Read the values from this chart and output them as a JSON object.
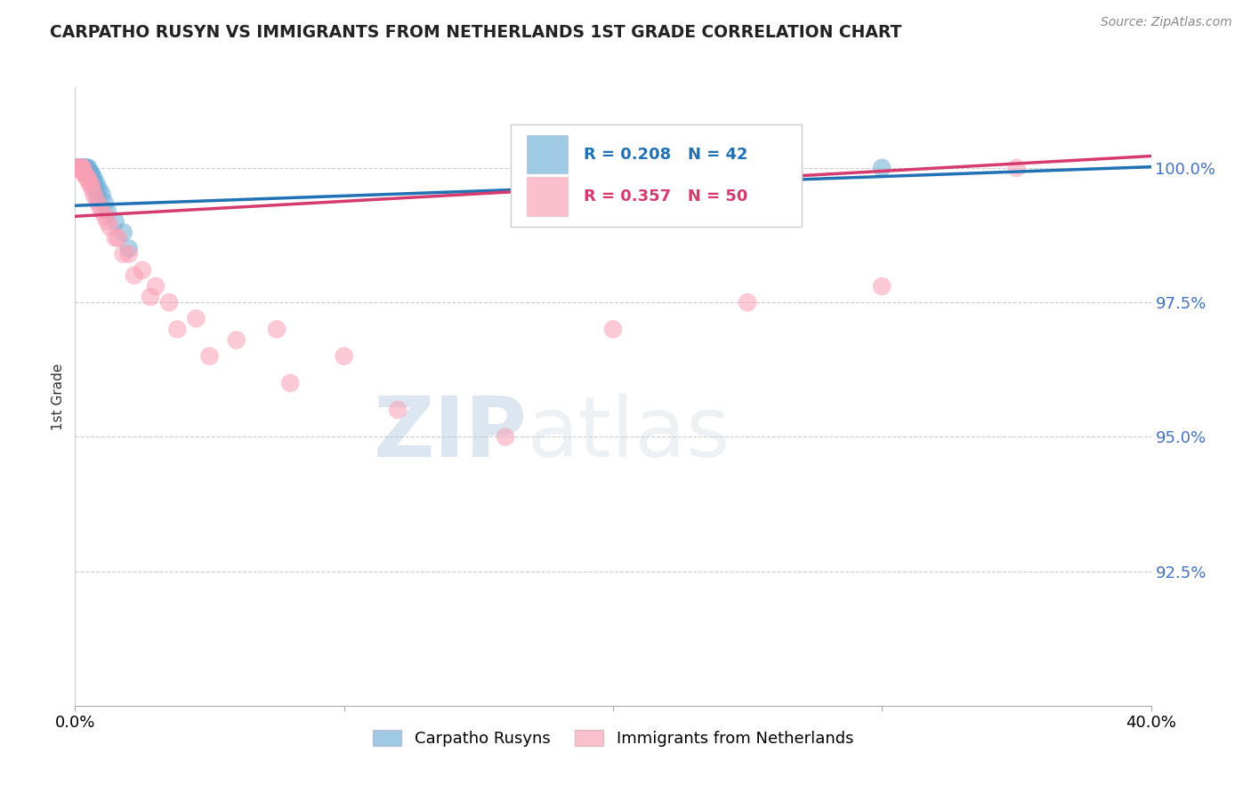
{
  "title": "CARPATHO RUSYN VS IMMIGRANTS FROM NETHERLANDS 1ST GRADE CORRELATION CHART",
  "source": "Source: ZipAtlas.com",
  "ylabel": "1st Grade",
  "y_ticks": [
    92.5,
    95.0,
    97.5,
    100.0
  ],
  "y_tick_labels": [
    "92.5%",
    "95.0%",
    "97.5%",
    "100.0%"
  ],
  "x_min": 0.0,
  "x_max": 40.0,
  "y_min": 90.0,
  "y_max": 101.5,
  "blue_color": "#6baed6",
  "pink_color": "#fa9fb5",
  "blue_line_color": "#2171b5",
  "pink_line_color": "#d63b6e",
  "blue_R": 0.208,
  "blue_N": 42,
  "pink_R": 0.357,
  "pink_N": 50,
  "legend_label_blue": "Carpatho Rusyns",
  "legend_label_pink": "Immigrants from Netherlands",
  "watermark_zip": "ZIP",
  "watermark_atlas": "atlas",
  "blue_scatter_x": [
    0.05,
    0.1,
    0.12,
    0.15,
    0.18,
    0.2,
    0.22,
    0.25,
    0.28,
    0.3,
    0.35,
    0.4,
    0.45,
    0.5,
    0.55,
    0.6,
    0.65,
    0.7,
    0.8,
    0.9,
    1.0,
    1.1,
    1.2,
    1.5,
    1.8,
    2.0,
    0.08,
    0.13,
    0.17,
    0.23,
    0.27,
    0.32,
    0.38,
    0.43,
    0.48,
    0.53,
    0.58,
    0.63,
    0.68,
    0.75,
    0.85,
    30.0
  ],
  "blue_scatter_y": [
    100.0,
    100.0,
    100.0,
    100.0,
    100.0,
    100.0,
    100.0,
    100.0,
    100.0,
    100.0,
    100.0,
    100.0,
    100.0,
    100.0,
    99.9,
    99.9,
    99.85,
    99.8,
    99.7,
    99.6,
    99.5,
    99.35,
    99.2,
    99.0,
    98.8,
    98.5,
    100.0,
    100.0,
    100.0,
    100.0,
    100.0,
    100.0,
    100.0,
    99.95,
    99.9,
    99.85,
    99.8,
    99.75,
    99.7,
    99.6,
    99.45,
    100.0
  ],
  "pink_scatter_x": [
    0.05,
    0.1,
    0.12,
    0.15,
    0.18,
    0.2,
    0.25,
    0.3,
    0.35,
    0.4,
    0.5,
    0.6,
    0.7,
    0.9,
    1.1,
    1.3,
    1.6,
    2.0,
    2.5,
    3.0,
    3.5,
    4.5,
    6.0,
    7.5,
    10.0,
    0.08,
    0.13,
    0.17,
    0.22,
    0.27,
    0.33,
    0.45,
    0.55,
    0.65,
    0.8,
    1.0,
    1.2,
    1.5,
    1.8,
    2.2,
    2.8,
    3.8,
    5.0,
    8.0,
    12.0,
    16.0,
    20.0,
    25.0,
    30.0,
    35.0
  ],
  "pink_scatter_y": [
    100.0,
    100.0,
    100.0,
    100.0,
    100.0,
    100.0,
    100.0,
    100.0,
    99.9,
    99.85,
    99.8,
    99.7,
    99.5,
    99.3,
    99.1,
    98.9,
    98.7,
    98.4,
    98.1,
    97.8,
    97.5,
    97.2,
    96.8,
    97.0,
    96.5,
    100.0,
    100.0,
    100.0,
    100.0,
    99.95,
    99.9,
    99.8,
    99.7,
    99.6,
    99.4,
    99.2,
    99.0,
    98.7,
    98.4,
    98.0,
    97.6,
    97.0,
    96.5,
    96.0,
    95.5,
    95.0,
    97.0,
    97.5,
    97.8,
    100.0
  ],
  "blue_trend_x": [
    0.0,
    40.0
  ],
  "blue_trend_y_intercept": 99.3,
  "blue_trend_slope": 0.018,
  "pink_trend_y_intercept": 99.1,
  "pink_trend_slope": 0.028
}
